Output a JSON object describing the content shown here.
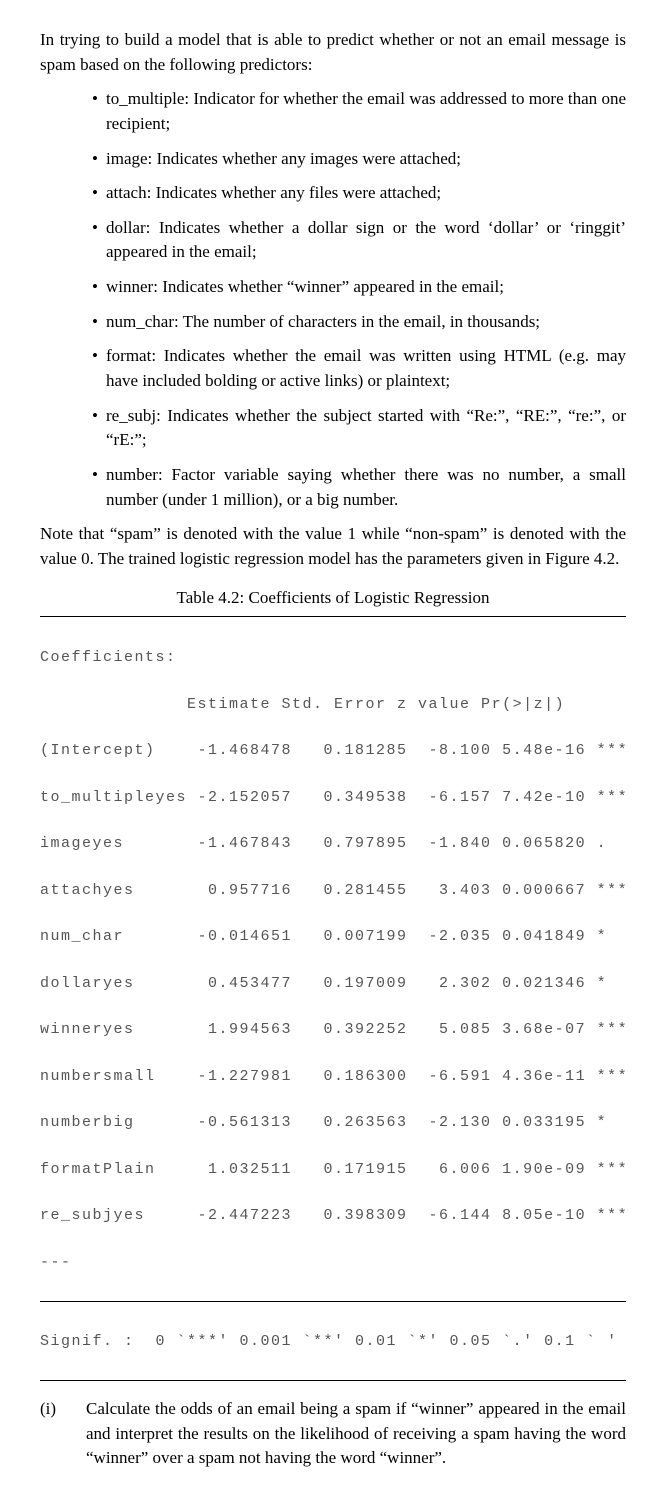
{
  "intro": "In trying to build a model that is able to predict whether or not an email message is spam based on the following predictors:",
  "predictors": [
    {
      "term": "to_multiple",
      "desc": "Indicator for whether the email was addressed to more than one recipient;"
    },
    {
      "term": "image",
      "desc": "Indicates whether any images were attached;"
    },
    {
      "term": "attach",
      "desc": "Indicates whether any files were attached;"
    },
    {
      "term": "dollar",
      "desc": "Indicates whether a dollar sign or the word ‘dollar’ or ‘ringgit’ appeared in the email;"
    },
    {
      "term": "winner",
      "desc": "Indicates whether “winner” appeared in the email;"
    },
    {
      "term": "num_char",
      "desc": "The number of characters in the email, in thousands;"
    },
    {
      "term": "format",
      "desc": "Indicates whether the email was written using HTML (e.g. may have included bolding or active links) or plaintext;"
    },
    {
      "term": "re_subj",
      "desc": "Indicates whether the subject started with “Re:”, “RE:”, “re:”, or “rE:”;"
    },
    {
      "term": "number",
      "desc": "Factor variable saying whether there was no number, a small number (under 1 million), or a big number."
    }
  ],
  "note": "Note that “spam” is denoted with the value 1 while “non-spam” is denoted with the value 0. The trained logistic regression model has the parameters given in Figure 4.2.",
  "table_caption": "Table 4.2: Coefficients of Logistic Regression",
  "coef": {
    "heading": "Coefficients:",
    "col_header": "              Estimate Std. Error z value Pr(>|z|)",
    "rows": [
      "(Intercept)    -1.468478   0.181285  -8.100 5.48e-16 ***",
      "to_multipleyes -2.152057   0.349538  -6.157 7.42e-10 ***",
      "imageyes       -1.467843   0.797895  -1.840 0.065820 .",
      "attachyes       0.957716   0.281455   3.403 0.000667 ***",
      "num_char       -0.014651   0.007199  -2.035 0.041849 *",
      "dollaryes       0.453477   0.197009   2.302 0.021346 *",
      "winneryes       1.994563   0.392252   5.085 3.68e-07 ***",
      "numbersmall    -1.227981   0.186300  -6.591 4.36e-11 ***",
      "numberbig      -0.561313   0.263563  -2.130 0.033195 *",
      "formatPlain     1.032511   0.171915   6.006 1.90e-09 ***",
      "re_subjyes     -2.447223   0.398309  -6.144 8.05e-10 ***",
      "---"
    ],
    "signif": "Signif. :  0 `***' 0.001 `**' 0.01 `*' 0.05 `.' 0.1 ` ' 1",
    "font_color": "#555555",
    "border_color": "#000000",
    "font_family_mono": "Courier New"
  },
  "question": {
    "label": "(i)",
    "text": "Calculate the odds of an email being a spam if “winner” appeared in the email and interpret the results on the likelihood of receiving a spam having the word “winner” over a spam not having the word “winner”."
  }
}
